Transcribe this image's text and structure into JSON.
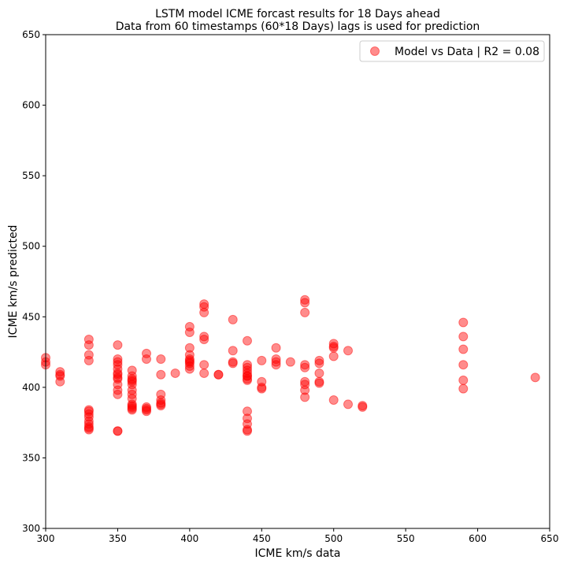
{
  "chart_data": {
    "type": "scatter",
    "title_lines": [
      "LSTM model ICME forcast results for 18 Days ahead",
      "Data from 60 timestamps (60*18 Days) lags is used for prediction"
    ],
    "xlabel": "ICME km/s data",
    "ylabel": "ICME km/s predicted",
    "xlim": [
      300,
      650
    ],
    "ylim": [
      300,
      650
    ],
    "xticks": [
      300,
      350,
      400,
      450,
      500,
      550,
      600,
      650
    ],
    "yticks": [
      300,
      350,
      400,
      450,
      500,
      550,
      600,
      650
    ],
    "grid": false,
    "legend_position": "top-right",
    "series": [
      {
        "name": "Model vs Data | R2 = 0.08",
        "color": "#ff0000",
        "opacity": 0.45,
        "x": [
          300,
          300,
          300,
          310,
          310,
          310,
          310,
          330,
          330,
          330,
          330,
          330,
          330,
          330,
          330,
          330,
          330,
          330,
          330,
          330,
          350,
          350,
          350,
          350,
          350,
          350,
          350,
          350,
          350,
          350,
          350,
          350,
          350,
          350,
          360,
          360,
          360,
          360,
          360,
          360,
          360,
          360,
          360,
          360,
          360,
          360,
          360,
          360,
          370,
          370,
          370,
          370,
          370,
          370,
          380,
          380,
          380,
          380,
          380,
          380,
          380,
          390,
          400,
          400,
          400,
          400,
          400,
          400,
          400,
          400,
          400,
          400,
          410,
          410,
          410,
          410,
          410,
          410,
          410,
          420,
          420,
          430,
          430,
          430,
          430,
          440,
          440,
          440,
          440,
          440,
          440,
          440,
          440,
          440,
          440,
          440,
          440,
          440,
          440,
          450,
          450,
          450,
          450,
          460,
          460,
          460,
          460,
          470,
          480,
          480,
          480,
          480,
          480,
          480,
          480,
          480,
          480,
          490,
          490,
          490,
          490,
          490,
          500,
          500,
          500,
          500,
          500,
          510,
          510,
          520,
          520,
          590,
          590,
          590,
          590,
          590,
          590,
          640
        ],
        "y": [
          421,
          418,
          416,
          411,
          409,
          408,
          404,
          434,
          430,
          423,
          384,
          383,
          381,
          379,
          376,
          374,
          372,
          371,
          370,
          419,
          416,
          413,
          409,
          406,
          402,
          398,
          395,
          369,
          369,
          420,
          418,
          410,
          407,
          430,
          412,
          408,
          405,
          402,
          398,
          395,
          392,
          388,
          387,
          386,
          384,
          385,
          404,
          406,
          424,
          420,
          386,
          384,
          383,
          385,
          420,
          409,
          395,
          391,
          389,
          387,
          388,
          410,
          443,
          439,
          428,
          423,
          420,
          418,
          417,
          415,
          413,
          419,
          459,
          457,
          453,
          436,
          434,
          416,
          410,
          409,
          409,
          448,
          426,
          418,
          417,
          433,
          416,
          414,
          412,
          410,
          408,
          406,
          405,
          383,
          378,
          374,
          370,
          369,
          408,
          419,
          404,
          400,
          399,
          428,
          420,
          418,
          416,
          418,
          462,
          460,
          453,
          416,
          414,
          404,
          402,
          398,
          393,
          419,
          417,
          410,
          404,
          403,
          431,
          429,
          422,
          391,
          428,
          426,
          388,
          387,
          386,
          446,
          436,
          427,
          416,
          405,
          399,
          407
        ]
      }
    ]
  }
}
